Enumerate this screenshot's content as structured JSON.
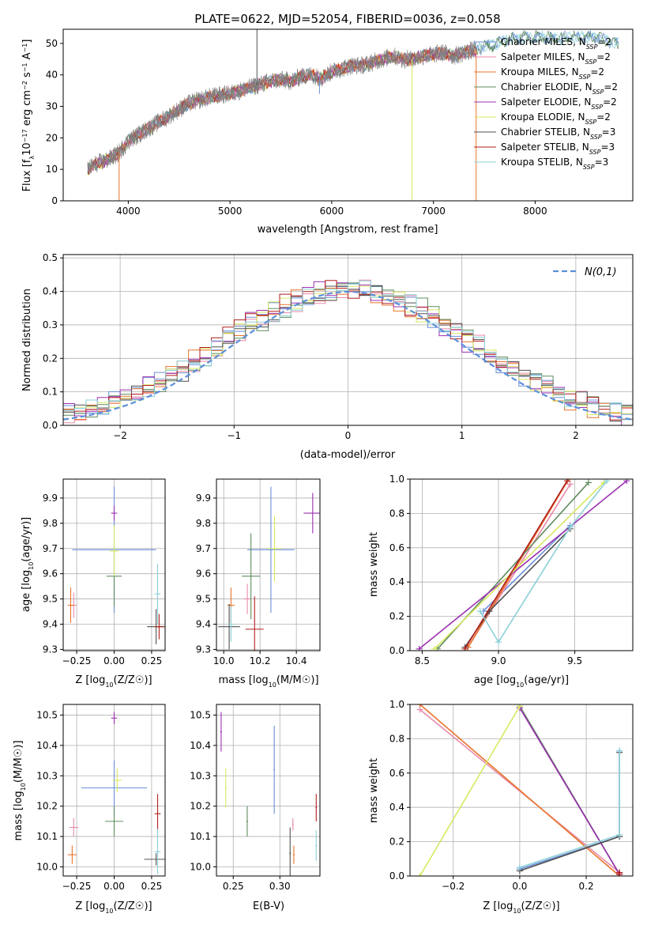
{
  "title": "PLATE=0622, MJD=52054, FIBERID=0036, z=0.058",
  "colors": [
    "#6a8fd8",
    "#e88aa8",
    "#e8742a",
    "#5e8c5e",
    "#9b30b0",
    "#d8e860",
    "#505050",
    "#b21e1e",
    "#8ccfd8"
  ],
  "legend_labels": [
    "Chabrier MILES, N_SSP=2",
    "Salpeter MILES, N_SSP=2",
    "Kroupa MILES, N_SSP=2",
    "Chabrier ELODIE, N_SSP=2",
    "Salpeter ELODIE, N_SSP=2",
    "Kroupa ELODIE, N_SSP=2",
    "Chabrier STELIB, N_SSP=3",
    "Salpeter STELIB, N_SSP=3",
    "Kroupa STELIB, N_SSP=3"
  ],
  "chart_data": [
    {
      "id": "spectrum",
      "type": "line",
      "xlabel": "wavelength [Angstrom, rest frame]",
      "ylabel": "Flux [f_λ10^-17 erg cm^-2 s^-1 A^-1]",
      "xlim": [
        3360,
        8960
      ],
      "ylim": [
        0,
        54.5
      ],
      "xticks": [
        4000,
        5000,
        6000,
        7000,
        8000
      ],
      "yticks": [
        0,
        10,
        20,
        30,
        40,
        50
      ],
      "grid": false,
      "legend": "top-right",
      "continuum": {
        "x": [
          3600,
          3700,
          3800,
          3900,
          4000,
          4100,
          4200,
          4300,
          4400,
          4500,
          4600,
          4700,
          4800,
          4900,
          5000,
          5100,
          5200,
          5300,
          5400,
          5500,
          5600,
          5700,
          5800,
          5900,
          6000,
          6100,
          6200,
          6300,
          6400,
          6500,
          6600,
          6700,
          6800,
          6900,
          7000,
          7100,
          7200,
          7300,
          7400,
          7500,
          7600,
          7700,
          7800,
          7900,
          8000,
          8100,
          8200,
          8300,
          8400,
          8500,
          8600,
          8700,
          8800
        ],
        "y": [
          10,
          12,
          13,
          15,
          19,
          21,
          23,
          25,
          27,
          29,
          31,
          32,
          33,
          33.5,
          34,
          35,
          36,
          37,
          38,
          38.5,
          38,
          39.5,
          40,
          39,
          41,
          42,
          43,
          43,
          44,
          45,
          46,
          45,
          45,
          46,
          46.5,
          47,
          46,
          47,
          48,
          49,
          49.5,
          51,
          51.5,
          52,
          52,
          52,
          51.5,
          52,
          52,
          52,
          52,
          51,
          50
        ]
      },
      "spectrum_range": [
        3600,
        7420
      ],
      "model_range": [
        3600,
        8850
      ],
      "spikes": [
        {
          "x": 5265,
          "y_top": 54.5,
          "series": 6
        },
        {
          "x": 3910,
          "y_bottom": 0,
          "series": 2
        },
        {
          "x": 6790,
          "y_bottom": 0,
          "series": 5
        },
        {
          "x": 5880,
          "y_bottom": 34,
          "series": 0
        },
        {
          "x": 7420,
          "y_bottom": 0,
          "series": 2
        }
      ]
    },
    {
      "id": "residuals",
      "type": "step-histogram",
      "xlabel": "(data-model)/error",
      "ylabel": "Normed distribution",
      "xlim": [
        -2.5,
        2.5
      ],
      "ylim": [
        0,
        0.51
      ],
      "xticks": [
        -2,
        -1,
        0,
        1,
        2
      ],
      "yticks": [
        0.0,
        0.1,
        0.2,
        0.3,
        0.4,
        0.5
      ],
      "grid": true,
      "legend": "top-right",
      "bin_edges_start": -2.5,
      "bin_width": 0.1,
      "n_bins": 50,
      "reference": {
        "name": "N(0,1)",
        "color": "#5b8fd9",
        "dashed": true
      },
      "series_offsets": [
        0.008,
        -0.012,
        0.015,
        -0.018,
        0.02,
        0.005,
        -0.01,
        0.012,
        -0.006
      ]
    },
    {
      "id": "age-vs-Z",
      "type": "errorbar",
      "xlabel": "Z [log10(Z/Z☉)]",
      "ylabel": "age [log10(age/yr)]",
      "xlim": [
        -0.34,
        0.34
      ],
      "ylim": [
        9.295,
        9.975
      ],
      "xticks": [
        -0.25,
        0.0,
        0.25
      ],
      "yticks": [
        9.3,
        9.4,
        9.5,
        9.6,
        9.7,
        9.8,
        9.9
      ],
      "points": [
        {
          "x": 0.0,
          "y": 9.695,
          "xerr": 0.28,
          "yerr": 0.25,
          "series": 0
        },
        {
          "x": -0.27,
          "y": 9.475,
          "xerr": 0.02,
          "yerr": 0.05,
          "series": 1
        },
        {
          "x": -0.29,
          "y": 9.475,
          "xerr": 0.02,
          "yerr": 0.07,
          "series": 2
        },
        {
          "x": 0.0,
          "y": 9.59,
          "xerr": 0.05,
          "yerr": 0.12,
          "series": 3
        },
        {
          "x": 0.0,
          "y": 9.84,
          "xerr": 0.02,
          "yerr": 0.03,
          "series": 4
        },
        {
          "x": 0.0,
          "y": 9.69,
          "xerr": 0.03,
          "yerr": 0.1,
          "series": 5
        },
        {
          "x": 0.28,
          "y": 9.39,
          "xerr": 0.06,
          "yerr": 0.07,
          "series": 6
        },
        {
          "x": 0.3,
          "y": 9.39,
          "xerr": 0.03,
          "yerr": 0.05,
          "series": 7
        },
        {
          "x": 0.29,
          "y": 9.52,
          "xerr": 0.02,
          "yerr": 0.12,
          "series": 8
        }
      ]
    },
    {
      "id": "age-vs-mass",
      "type": "errorbar",
      "xlabel": "mass [log10(M/M☉)]",
      "ylabel": "",
      "xlim": [
        9.96,
        10.53
      ],
      "ylim": [
        9.295,
        9.975
      ],
      "xticks": [
        10.0,
        10.2,
        10.4
      ],
      "yticks": [
        9.3,
        9.4,
        9.5,
        9.6,
        9.7,
        9.8,
        9.9
      ],
      "points": [
        {
          "x": 10.26,
          "y": 9.695,
          "xerr": 0.13,
          "yerr": 0.25,
          "series": 0
        },
        {
          "x": 10.13,
          "y": 9.5,
          "xerr": 0.02,
          "yerr": 0.06,
          "series": 1
        },
        {
          "x": 10.04,
          "y": 9.475,
          "xerr": 0.02,
          "yerr": 0.07,
          "series": 2
        },
        {
          "x": 10.15,
          "y": 9.59,
          "xerr": 0.05,
          "yerr": 0.17,
          "series": 3
        },
        {
          "x": 10.49,
          "y": 9.84,
          "xerr": 0.05,
          "yerr": 0.08,
          "series": 4
        },
        {
          "x": 10.28,
          "y": 9.7,
          "xerr": 0.04,
          "yerr": 0.13,
          "series": 5
        },
        {
          "x": 10.03,
          "y": 9.39,
          "xerr": 0.06,
          "yerr": 0.09,
          "series": 6
        },
        {
          "x": 10.17,
          "y": 9.38,
          "xerr": 0.05,
          "yerr": 0.13,
          "series": 7
        },
        {
          "x": 10.04,
          "y": 9.4,
          "xerr": 0.02,
          "yerr": 0.07,
          "series": 8
        }
      ]
    },
    {
      "id": "mass-weight-vs-age",
      "type": "cumulative-line",
      "xlabel": "age [log10(age/yr)]",
      "ylabel": "mass weight",
      "xlim": [
        8.42,
        9.88
      ],
      "ylim": [
        0,
        1
      ],
      "xticks": [
        8.5,
        9.0,
        9.5
      ],
      "yticks": [
        0.0,
        0.2,
        0.4,
        0.6,
        0.8,
        1.0
      ],
      "grid": true,
      "series": [
        {
          "series": 0,
          "x": [
            8.9,
            9.47
          ],
          "y": [
            0.23,
            0.73
          ]
        },
        {
          "series": 1,
          "x": [
            8.8,
            9.47
          ],
          "y": [
            0.02,
            0.97
          ]
        },
        {
          "series": 2,
          "x": [
            8.8,
            9.46
          ],
          "y": [
            0.02,
            1.0
          ]
        },
        {
          "series": 3,
          "x": [
            8.6,
            9.59
          ],
          "y": [
            0.01,
            0.98
          ]
        },
        {
          "series": 4,
          "x": [
            8.48,
            9.84
          ],
          "y": [
            0.01,
            0.99
          ]
        },
        {
          "series": 5,
          "x": [
            8.58,
            9.69
          ],
          "y": [
            0.01,
            0.98
          ]
        },
        {
          "series": 6,
          "x": [
            8.78,
            8.94,
            9.47
          ],
          "y": [
            0.02,
            0.23,
            0.71
          ]
        },
        {
          "series": 7,
          "x": [
            8.78,
            9.45
          ],
          "y": [
            0.01,
            0.99
          ]
        },
        {
          "series": 8,
          "x": [
            8.88,
            9.0,
            9.47,
            9.71
          ],
          "y": [
            0.23,
            0.05,
            0.72,
            0.99
          ]
        }
      ]
    },
    {
      "id": "mass-vs-Z",
      "type": "errorbar",
      "xlabel": "Z [log10(Z/Z☉)]",
      "ylabel": "mass [log10(M/M☉)]",
      "xlim": [
        -0.34,
        0.34
      ],
      "ylim": [
        9.97,
        10.535
      ],
      "xticks": [
        -0.25,
        0.0,
        0.25
      ],
      "yticks": [
        10.0,
        10.1,
        10.2,
        10.3,
        10.4,
        10.5
      ],
      "points": [
        {
          "x": 0.0,
          "y": 10.26,
          "xerr": 0.22,
          "yerr": 0.09,
          "series": 0
        },
        {
          "x": -0.27,
          "y": 10.13,
          "xerr": 0.03,
          "yerr": 0.03,
          "series": 1
        },
        {
          "x": -0.28,
          "y": 10.04,
          "xerr": 0.03,
          "yerr": 0.03,
          "series": 2
        },
        {
          "x": 0.0,
          "y": 10.15,
          "xerr": 0.06,
          "yerr": 0.05,
          "series": 3
        },
        {
          "x": 0.0,
          "y": 10.49,
          "xerr": 0.02,
          "yerr": 0.02,
          "series": 4
        },
        {
          "x": 0.02,
          "y": 10.285,
          "xerr": 0.03,
          "yerr": 0.04,
          "series": 5
        },
        {
          "x": 0.28,
          "y": 10.025,
          "xerr": 0.08,
          "yerr": 0.02,
          "series": 6
        },
        {
          "x": 0.29,
          "y": 10.175,
          "xerr": 0.02,
          "yerr": 0.065,
          "series": 7
        },
        {
          "x": 0.29,
          "y": 10.05,
          "xerr": 0.02,
          "yerr": 0.075,
          "series": 8
        }
      ]
    },
    {
      "id": "mass-vs-ebv",
      "type": "errorbar",
      "xlabel": "E(B-V)",
      "ylabel": "",
      "xlim": [
        0.232,
        0.343
      ],
      "ylim": [
        9.97,
        10.535
      ],
      "xticks": [
        0.25,
        0.3
      ],
      "yticks": [
        10.0,
        10.1,
        10.2,
        10.3,
        10.4,
        10.5
      ],
      "points": [
        {
          "x": 0.294,
          "y": 10.32,
          "xerr": 0,
          "yerr": 0.145,
          "series": 0
        },
        {
          "x": 0.314,
          "y": 10.14,
          "xerr": 0,
          "yerr": 0.02,
          "series": 1
        },
        {
          "x": 0.315,
          "y": 10.04,
          "xerr": 0,
          "yerr": 0.03,
          "series": 2
        },
        {
          "x": 0.265,
          "y": 10.15,
          "xerr": 0,
          "yerr": 0.05,
          "series": 3
        },
        {
          "x": 0.237,
          "y": 10.445,
          "xerr": 0,
          "yerr": 0.065,
          "series": 4
        },
        {
          "x": 0.242,
          "y": 10.26,
          "xerr": 0,
          "yerr": 0.065,
          "series": 5
        },
        {
          "x": 0.311,
          "y": 10.045,
          "xerr": 0,
          "yerr": 0.085,
          "series": 6
        },
        {
          "x": 0.339,
          "y": 10.195,
          "xerr": 0,
          "yerr": 0.045,
          "series": 7
        },
        {
          "x": 0.339,
          "y": 10.07,
          "xerr": 0,
          "yerr": 0.05,
          "series": 8
        }
      ]
    },
    {
      "id": "mass-weight-vs-Z",
      "type": "cumulative-line",
      "xlabel": "Z [log10(Z/Z☉)]",
      "ylabel": "mass weight",
      "xlim": [
        -0.33,
        0.34
      ],
      "ylim": [
        0,
        1
      ],
      "xticks": [
        -0.2,
        0.0,
        0.2
      ],
      "yticks": [
        0.0,
        0.2,
        0.4,
        0.6,
        0.8,
        1.0
      ],
      "grid": true,
      "series": [
        {
          "series": 0,
          "x": [
            0.0,
            0.3,
            0.3
          ],
          "y": [
            0.04,
            0.23,
            0.73
          ]
        },
        {
          "series": 1,
          "x": [
            -0.3,
            0.3
          ],
          "y": [
            0.97,
            0.02
          ]
        },
        {
          "series": 2,
          "x": [
            -0.3,
            0.3
          ],
          "y": [
            1.0,
            0.0
          ]
        },
        {
          "series": 3,
          "x": [
            0.0,
            0.3
          ],
          "y": [
            0.99,
            0.01
          ]
        },
        {
          "series": 4,
          "x": [
            0.0,
            0.3
          ],
          "y": [
            0.98,
            0.01
          ]
        },
        {
          "series": 5,
          "x": [
            -0.3,
            0.0
          ],
          "y": [
            0.0,
            0.99
          ]
        },
        {
          "series": 6,
          "x": [
            0.0,
            0.3,
            0.3
          ],
          "y": [
            0.03,
            0.23,
            0.72
          ]
        },
        {
          "series": 7,
          "x": [
            0.3,
            0.3
          ],
          "y": [
            0.01,
            0.02
          ]
        },
        {
          "series": 8,
          "x": [
            0.0,
            0.3,
            0.3
          ],
          "y": [
            0.05,
            0.24,
            0.73
          ]
        }
      ]
    }
  ]
}
